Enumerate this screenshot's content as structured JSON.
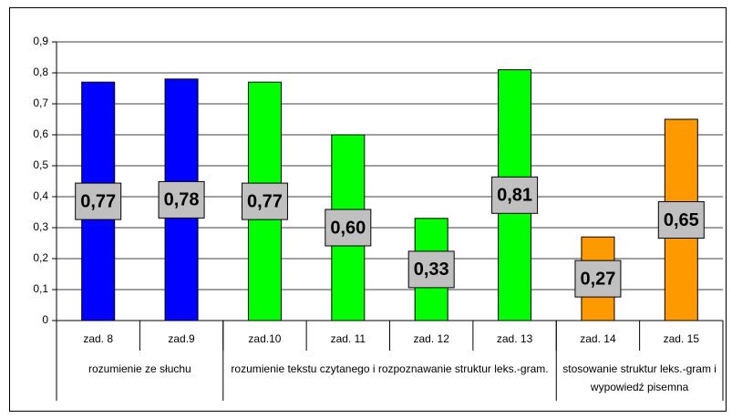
{
  "chart_data": {
    "type": "bar",
    "category_groups": [
      {
        "name": "rozumienie ze słuchu",
        "categories": [
          "zad. 8",
          "zad.9"
        ]
      },
      {
        "name": "rozumienie tekstu czytanego i rozpoznawanie struktur leks.-gram.",
        "categories": [
          "zad.10",
          "zad. 11",
          "zad. 12",
          "zad. 13"
        ]
      },
      {
        "name": "stosowanie struktur leks.-gram i wypowiedź pisemna",
        "categories": [
          "zad. 14",
          "zad. 15"
        ]
      }
    ],
    "values": [
      0.77,
      0.78,
      0.77,
      0.6,
      0.33,
      0.81,
      0.27,
      0.65
    ],
    "value_labels": [
      "0,77",
      "0,78",
      "0,77",
      "0,60",
      "0,33",
      "0,81",
      "0,27",
      "0,65"
    ],
    "colors": [
      "#0000ff",
      "#0000ff",
      "#00ff00",
      "#00ff00",
      "#00ff00",
      "#00ff00",
      "#ff9900",
      "#ff9900"
    ],
    "ylim": [
      0,
      0.9
    ],
    "yticks": [
      0,
      {
        "value": 0.1,
        "label": "0,1"
      },
      {
        "value": 0.2,
        "label": "0,2"
      },
      {
        "value": 0.3,
        "label": "0,3"
      },
      {
        "value": 0.4,
        "label": "0,4"
      },
      {
        "value": 0.5,
        "label": "0,5"
      },
      {
        "value": 0.6,
        "label": "0,6"
      },
      {
        "value": 0.7,
        "label": "0,7"
      },
      {
        "value": 0.8,
        "label": "0,8"
      },
      {
        "value": 0.9,
        "label": "0,9"
      }
    ],
    "grid": true
  }
}
